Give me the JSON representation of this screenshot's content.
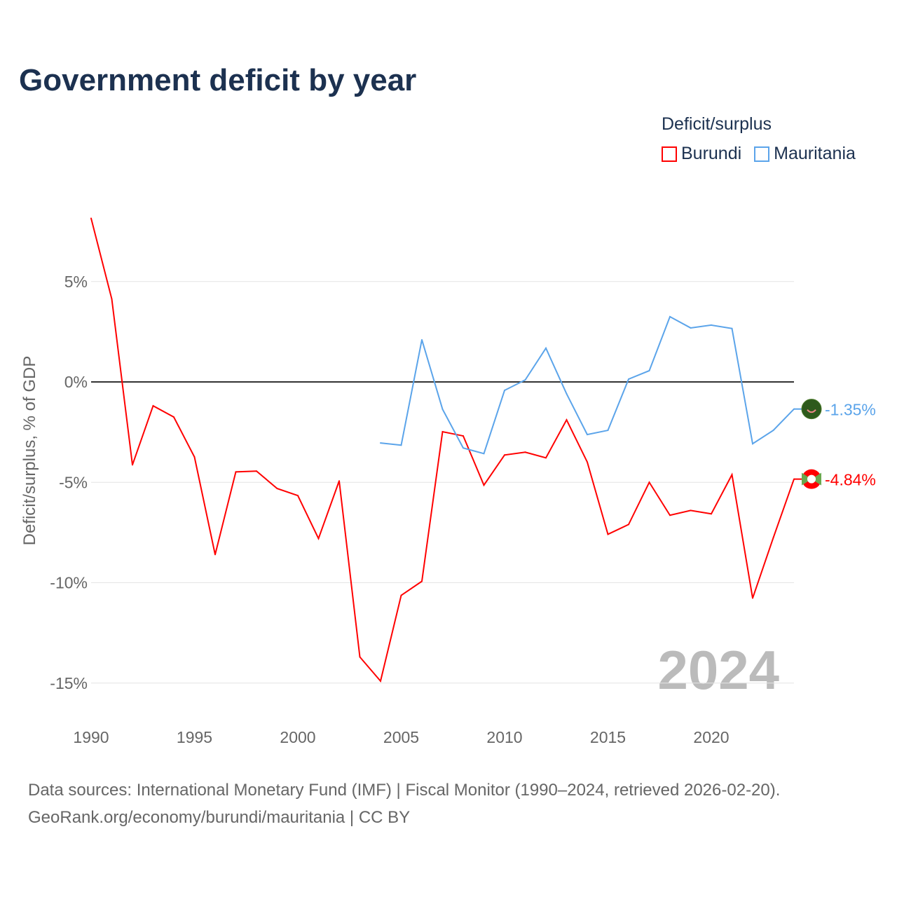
{
  "title": "Government deficit by year",
  "legend": {
    "title": "Deficit/surplus",
    "items": [
      {
        "label": "Burundi",
        "color": "#ff0000"
      },
      {
        "label": "Mauritania",
        "color": "#5ba4ea"
      }
    ]
  },
  "source": {
    "line1": "Data sources: International Monetary Fund (IMF) | Fiscal Monitor (1990–2024, retrieved 2026-02-20).",
    "line2": "GeoRank.org/economy/burundi/mauritania | CC BY"
  },
  "chart_data": {
    "type": "line",
    "title": "Government deficit by year",
    "ylabel": "Deficit/surplus, % of GDP",
    "xlabel": "",
    "xlim": [
      1990,
      2024
    ],
    "ylim": [
      -16.5,
      8.5
    ],
    "xticks": [
      1990,
      1995,
      2000,
      2005,
      2010,
      2015,
      2020
    ],
    "yticks": [
      {
        "v": 5,
        "label": "5%"
      },
      {
        "v": 0,
        "label": "0%"
      },
      {
        "v": -5,
        "label": "-5%"
      },
      {
        "v": -10,
        "label": "-10%"
      },
      {
        "v": -15,
        "label": "-15%"
      }
    ],
    "year_label": "2024",
    "series": [
      {
        "name": "Burundi",
        "color": "#ff0000",
        "end_label": "-4.84%",
        "x": [
          1990,
          1991,
          1992,
          1993,
          1994,
          1995,
          1996,
          1997,
          1998,
          1999,
          2000,
          2001,
          2002,
          2003,
          2004,
          2005,
          2006,
          2007,
          2008,
          2009,
          2010,
          2011,
          2012,
          2013,
          2014,
          2015,
          2016,
          2017,
          2018,
          2019,
          2020,
          2021,
          2022,
          2023,
          2024
        ],
        "values": [
          8.15,
          4.13,
          -4.13,
          -1.19,
          -1.75,
          -3.74,
          -8.6,
          -4.48,
          -4.44,
          -5.31,
          -5.66,
          -7.8,
          -4.93,
          -13.7,
          -14.9,
          -10.63,
          -9.93,
          -2.48,
          -2.69,
          -5.14,
          -3.64,
          -3.5,
          -3.78,
          -1.89,
          -3.99,
          -7.59,
          -7.1,
          -5.0,
          -6.64,
          -6.4,
          -6.57,
          -4.62,
          -10.77,
          -7.76,
          -4.84
        ]
      },
      {
        "name": "Mauritania",
        "color": "#5ba4ea",
        "end_label": "-1.35%",
        "x": [
          2004,
          2005,
          2006,
          2007,
          2008,
          2009,
          2010,
          2011,
          2012,
          2013,
          2014,
          2015,
          2016,
          2017,
          2018,
          2019,
          2020,
          2021,
          2022,
          2023,
          2024
        ],
        "values": [
          -3.04,
          -3.15,
          2.1,
          -1.36,
          -3.29,
          -3.57,
          -0.42,
          0.1,
          1.68,
          -0.59,
          -2.62,
          -2.41,
          0.14,
          0.56,
          3.25,
          2.69,
          2.83,
          2.66,
          -3.08,
          -2.41,
          -1.35
        ]
      }
    ]
  }
}
